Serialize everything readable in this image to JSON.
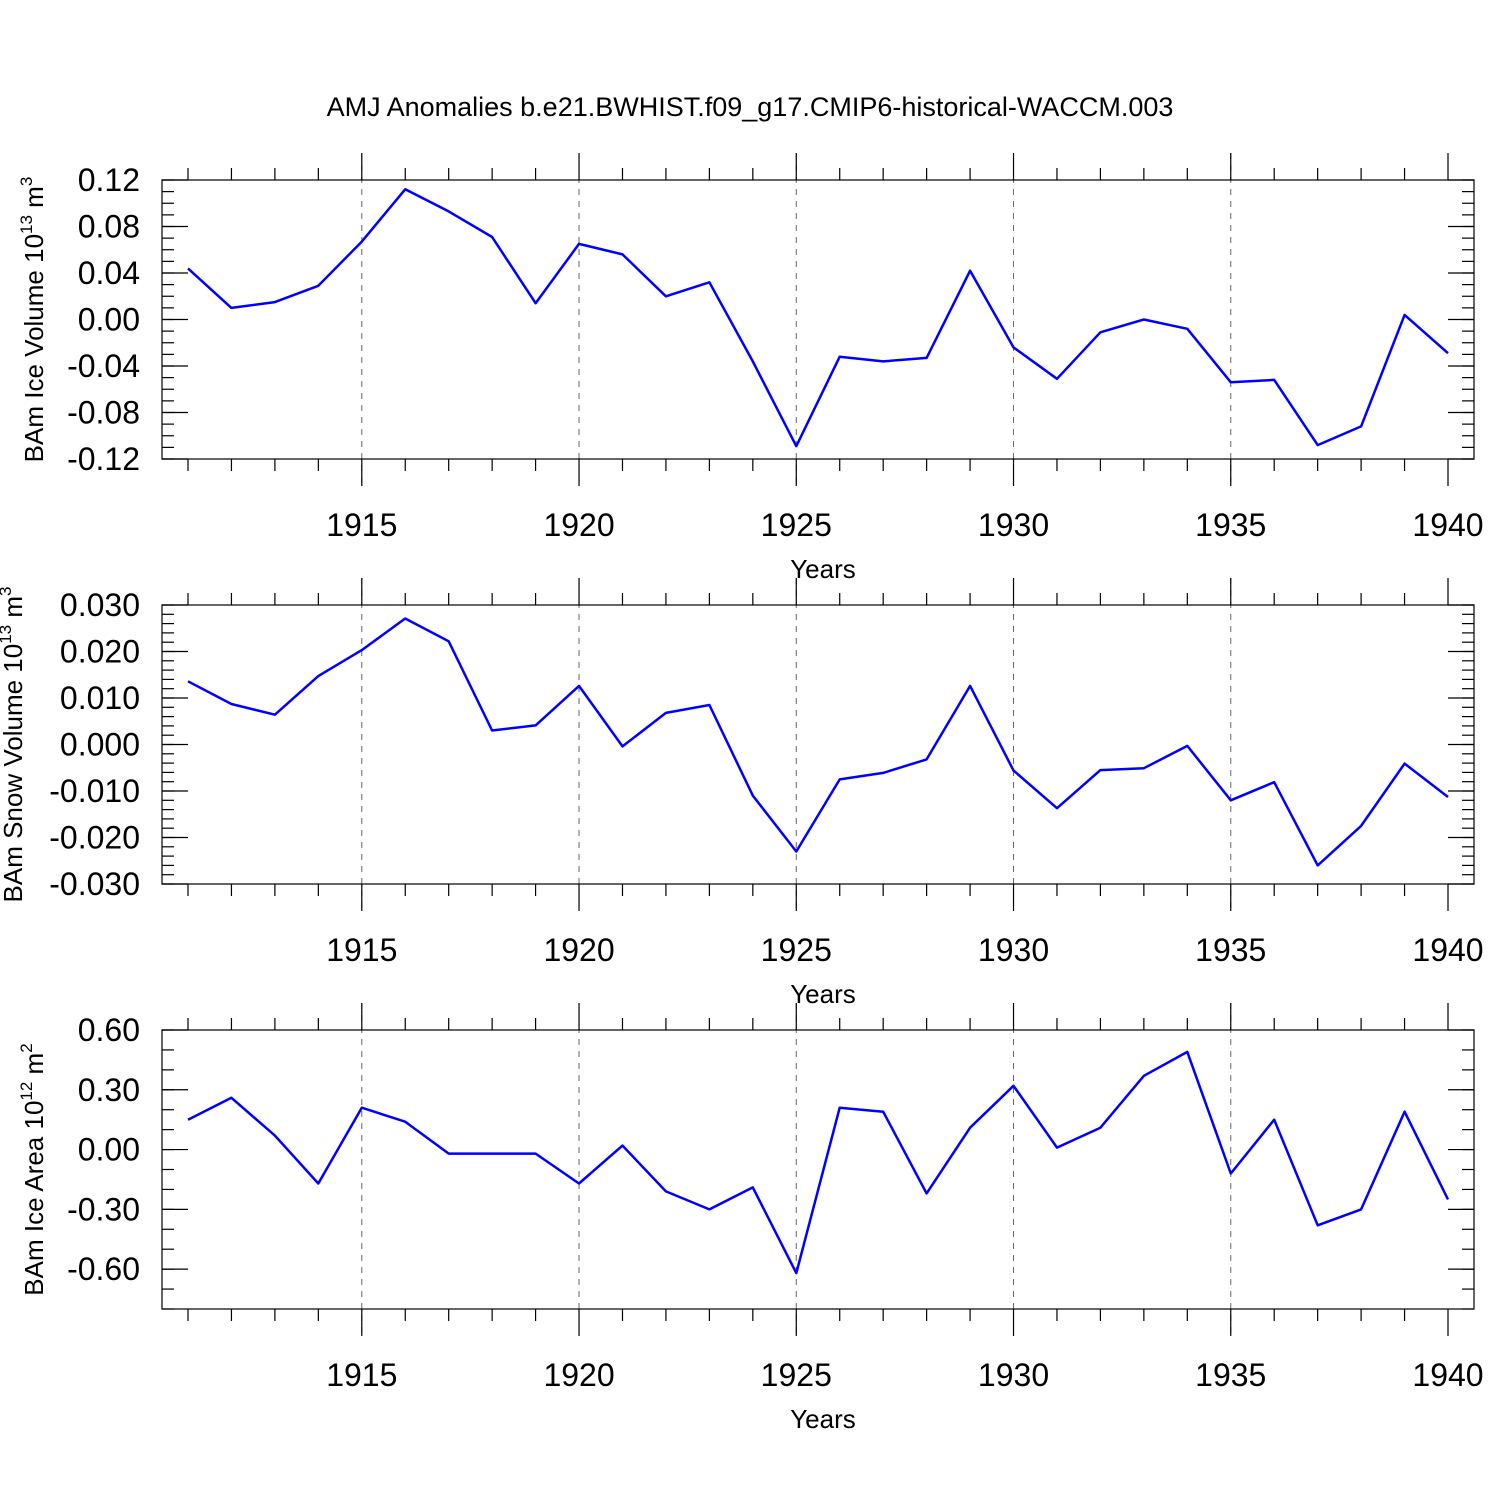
{
  "title": "AMJ Anomalies b.e21.BWHIST.f09_g17.CMIP6-historical-WACCM.003",
  "colors": {
    "series": "#0000ff",
    "frame": "#000000",
    "grid": "#666666"
  },
  "chart_data": [
    {
      "type": "line",
      "title": "AMJ Anomalies b.e21.BWHIST.f09_g17.CMIP6-historical-WACCM.003",
      "xlabel": "Years",
      "ylabel": {
        "prefix": "BAm Ice Volume 10",
        "exp": "13",
        "unit": " m",
        "unit_exp": "3"
      },
      "xlim": [
        1911,
        1940
      ],
      "ylim": [
        -0.12,
        0.12
      ],
      "x_ticks": [
        1915,
        1920,
        1925,
        1930,
        1935,
        1940
      ],
      "y_ticks": [
        -0.12,
        -0.08,
        -0.04,
        0.0,
        0.04,
        0.08,
        0.12
      ],
      "y_tick_labels": [
        "-0.12",
        "-0.08",
        "-0.04",
        "0.00",
        "0.04",
        "0.08",
        "0.12"
      ],
      "y_minor_step": 0.01,
      "grid": "vertical dashed at major x ticks",
      "x": [
        1911,
        1912,
        1913,
        1914,
        1915,
        1916,
        1917,
        1918,
        1919,
        1920,
        1921,
        1922,
        1923,
        1924,
        1925,
        1926,
        1927,
        1928,
        1929,
        1930,
        1931,
        1932,
        1933,
        1934,
        1935,
        1936,
        1937,
        1938,
        1939,
        1940
      ],
      "values": [
        0.044,
        0.01,
        0.015,
        0.029,
        0.067,
        0.112,
        0.093,
        0.071,
        0.014,
        0.065,
        0.056,
        0.02,
        0.032,
        -0.036,
        -0.109,
        -0.032,
        -0.036,
        -0.033,
        0.042,
        -0.024,
        -0.051,
        -0.011,
        0.0,
        -0.008,
        -0.054,
        -0.052,
        -0.108,
        -0.092,
        0.004,
        -0.029
      ]
    },
    {
      "type": "line",
      "xlabel": "Years",
      "ylabel": {
        "prefix": "BAm Snow Volume 10",
        "exp": "13",
        "unit": " m",
        "unit_exp": "3"
      },
      "xlim": [
        1911,
        1940
      ],
      "ylim": [
        -0.03,
        0.03
      ],
      "x_ticks": [
        1915,
        1920,
        1925,
        1930,
        1935,
        1940
      ],
      "y_ticks": [
        -0.03,
        -0.02,
        -0.01,
        0.0,
        0.01,
        0.02,
        0.03
      ],
      "y_tick_labels": [
        "-0.030",
        "-0.020",
        "-0.010",
        "0.000",
        "0.010",
        "0.020",
        "0.030"
      ],
      "y_minor_step": 0.002,
      "grid": "vertical dashed at major x ticks",
      "x": [
        1911,
        1912,
        1913,
        1914,
        1915,
        1916,
        1917,
        1918,
        1919,
        1920,
        1921,
        1922,
        1923,
        1924,
        1925,
        1926,
        1927,
        1928,
        1929,
        1930,
        1931,
        1932,
        1933,
        1934,
        1935,
        1936,
        1937,
        1938,
        1939,
        1940
      ],
      "values": [
        0.0136,
        0.0087,
        0.0064,
        0.0147,
        0.0203,
        0.0271,
        0.0222,
        0.003,
        0.0041,
        0.0126,
        -0.0004,
        0.0068,
        0.0085,
        -0.011,
        -0.023,
        -0.0075,
        -0.0061,
        -0.0032,
        0.0126,
        -0.0056,
        -0.0137,
        -0.0055,
        -0.0051,
        -0.0003,
        -0.012,
        -0.0081,
        -0.026,
        -0.0175,
        -0.0041,
        -0.0113
      ]
    },
    {
      "type": "line",
      "xlabel": "Years",
      "ylabel": {
        "prefix": "BAm Ice Area 10",
        "exp": "12",
        "unit": " m",
        "unit_exp": "2"
      },
      "xlim": [
        1911,
        1940
      ],
      "ylim": [
        -0.8,
        0.6
      ],
      "x_ticks": [
        1915,
        1920,
        1925,
        1930,
        1935,
        1940
      ],
      "y_ticks": [
        -0.6,
        -0.3,
        0.0,
        0.3,
        0.6
      ],
      "y_tick_labels": [
        "-0.60",
        "-0.30",
        "0.00",
        "0.30",
        "0.60"
      ],
      "y_minor_step": 0.1,
      "grid": "vertical dashed at major x ticks",
      "x": [
        1911,
        1912,
        1913,
        1914,
        1915,
        1916,
        1917,
        1918,
        1919,
        1920,
        1921,
        1922,
        1923,
        1924,
        1925,
        1926,
        1927,
        1928,
        1929,
        1930,
        1931,
        1932,
        1933,
        1934,
        1935,
        1936,
        1937,
        1938,
        1939,
        1940
      ],
      "values": [
        0.15,
        0.26,
        0.07,
        -0.17,
        0.21,
        0.14,
        -0.02,
        -0.02,
        -0.02,
        -0.17,
        0.02,
        -0.21,
        -0.3,
        -0.19,
        -0.62,
        0.21,
        0.19,
        -0.22,
        0.11,
        0.32,
        0.01,
        0.11,
        0.37,
        0.49,
        -0.12,
        0.15,
        -0.38,
        -0.3,
        0.19,
        -0.25
      ]
    }
  ]
}
